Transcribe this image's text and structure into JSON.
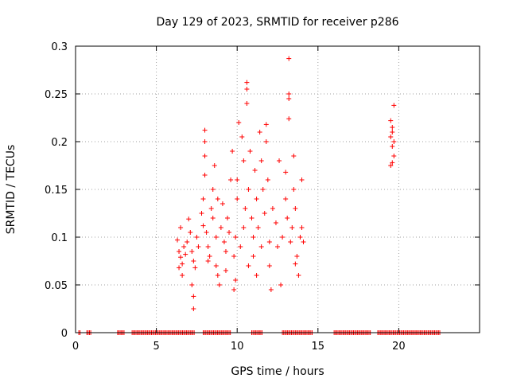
{
  "chart_data": {
    "type": "scatter",
    "title": "Day 129 of 2023, SRMTID for receiver p286",
    "xlabel": "GPS time / hours",
    "ylabel": "SRMTID / TECUs",
    "xlim": [
      0,
      25
    ],
    "ylim": [
      0,
      0.3
    ],
    "xticks": [
      0,
      5,
      10,
      15,
      20
    ],
    "xtick_labels": [
      "0",
      "5",
      "10",
      "15",
      "20"
    ],
    "yticks": [
      0,
      0.05,
      0.1,
      0.15,
      0.2,
      0.25,
      0.3
    ],
    "ytick_labels": [
      "0",
      "0.05",
      "0.1",
      "0.15",
      "0.2",
      "0.25",
      "0.3"
    ],
    "grid": true,
    "marker": "+",
    "color": "#ff0000",
    "series": [
      {
        "name": "SRMTID",
        "points": [
          [
            6.3,
            0.097
          ],
          [
            6.4,
            0.085
          ],
          [
            6.5,
            0.079
          ],
          [
            6.6,
            0.072
          ],
          [
            6.4,
            0.068
          ],
          [
            6.7,
            0.09
          ],
          [
            6.5,
            0.11
          ],
          [
            6.8,
            0.082
          ],
          [
            6.9,
            0.095
          ],
          [
            6.6,
            0.06
          ],
          [
            7.0,
            0.119
          ],
          [
            7.1,
            0.105
          ],
          [
            7.2,
            0.085
          ],
          [
            7.3,
            0.075
          ],
          [
            7.4,
            0.068
          ],
          [
            7.2,
            0.05
          ],
          [
            7.3,
            0.038
          ],
          [
            7.3,
            0.025
          ],
          [
            7.5,
            0.1
          ],
          [
            7.6,
            0.09
          ],
          [
            7.8,
            0.125
          ],
          [
            7.9,
            0.112
          ],
          [
            7.9,
            0.14
          ],
          [
            8.0,
            0.165
          ],
          [
            8.0,
            0.185
          ],
          [
            8.0,
            0.2
          ],
          [
            8.0,
            0.212
          ],
          [
            8.1,
            0.105
          ],
          [
            8.2,
            0.09
          ],
          [
            8.3,
            0.08
          ],
          [
            8.4,
            0.13
          ],
          [
            8.5,
            0.15
          ],
          [
            8.6,
            0.175
          ],
          [
            8.5,
            0.12
          ],
          [
            8.7,
            0.1
          ],
          [
            8.7,
            0.07
          ],
          [
            8.8,
            0.06
          ],
          [
            8.9,
            0.05
          ],
          [
            9.0,
            0.11
          ],
          [
            9.1,
            0.135
          ],
          [
            9.2,
            0.095
          ],
          [
            9.3,
            0.085
          ],
          [
            9.4,
            0.12
          ],
          [
            9.5,
            0.105
          ],
          [
            9.6,
            0.16
          ],
          [
            9.7,
            0.19
          ],
          [
            9.8,
            0.045
          ],
          [
            9.8,
            0.08
          ],
          [
            9.9,
            0.1
          ],
          [
            10.0,
            0.14
          ],
          [
            10.0,
            0.16
          ],
          [
            10.1,
            0.22
          ],
          [
            10.2,
            0.09
          ],
          [
            10.3,
            0.205
          ],
          [
            10.4,
            0.18
          ],
          [
            10.4,
            0.11
          ],
          [
            10.5,
            0.13
          ],
          [
            10.6,
            0.262
          ],
          [
            10.6,
            0.255
          ],
          [
            10.6,
            0.24
          ],
          [
            10.7,
            0.15
          ],
          [
            10.8,
            0.19
          ],
          [
            10.9,
            0.12
          ],
          [
            11.0,
            0.1
          ],
          [
            11.0,
            0.08
          ],
          [
            11.1,
            0.17
          ],
          [
            11.2,
            0.14
          ],
          [
            11.3,
            0.11
          ],
          [
            11.4,
            0.21
          ],
          [
            11.5,
            0.18
          ],
          [
            11.5,
            0.09
          ],
          [
            11.6,
            0.15
          ],
          [
            11.7,
            0.125
          ],
          [
            11.8,
            0.2
          ],
          [
            11.8,
            0.218
          ],
          [
            11.9,
            0.16
          ],
          [
            12.0,
            0.095
          ],
          [
            12.0,
            0.07
          ],
          [
            12.2,
            0.13
          ],
          [
            12.4,
            0.115
          ],
          [
            12.5,
            0.09
          ],
          [
            12.6,
            0.18
          ],
          [
            12.8,
            0.1
          ],
          [
            13.0,
            0.168
          ],
          [
            13.0,
            0.14
          ],
          [
            13.1,
            0.12
          ],
          [
            13.2,
            0.287
          ],
          [
            13.2,
            0.25
          ],
          [
            13.2,
            0.245
          ],
          [
            13.2,
            0.224
          ],
          [
            13.3,
            0.095
          ],
          [
            13.4,
            0.11
          ],
          [
            13.5,
            0.185
          ],
          [
            13.5,
            0.15
          ],
          [
            13.6,
            0.13
          ],
          [
            13.7,
            0.08
          ],
          [
            13.8,
            0.06
          ],
          [
            13.9,
            0.1
          ],
          [
            14.0,
            0.11
          ],
          [
            14.0,
            0.16
          ],
          [
            8.2,
            0.075
          ],
          [
            8.8,
            0.14
          ],
          [
            9.3,
            0.065
          ],
          [
            9.9,
            0.055
          ],
          [
            10.7,
            0.07
          ],
          [
            11.2,
            0.06
          ],
          [
            12.1,
            0.045
          ],
          [
            12.7,
            0.05
          ],
          [
            13.6,
            0.072
          ],
          [
            14.1,
            0.095
          ],
          [
            19.5,
            0.222
          ],
          [
            19.6,
            0.215
          ],
          [
            19.6,
            0.21
          ],
          [
            19.5,
            0.205
          ],
          [
            19.7,
            0.2
          ],
          [
            19.6,
            0.195
          ],
          [
            19.7,
            0.185
          ],
          [
            19.5,
            0.175
          ],
          [
            19.6,
            0.178
          ],
          [
            19.7,
            0.238
          ]
        ]
      }
    ],
    "zero_band_ranges": [
      [
        0.2,
        0.3
      ],
      [
        0.7,
        1.0
      ],
      [
        2.6,
        3.0
      ],
      [
        3.5,
        7.4
      ],
      [
        7.9,
        9.6
      ],
      [
        10.9,
        11.6
      ],
      [
        12.8,
        14.7
      ],
      [
        16.0,
        18.3
      ],
      [
        18.7,
        22.6
      ]
    ]
  }
}
